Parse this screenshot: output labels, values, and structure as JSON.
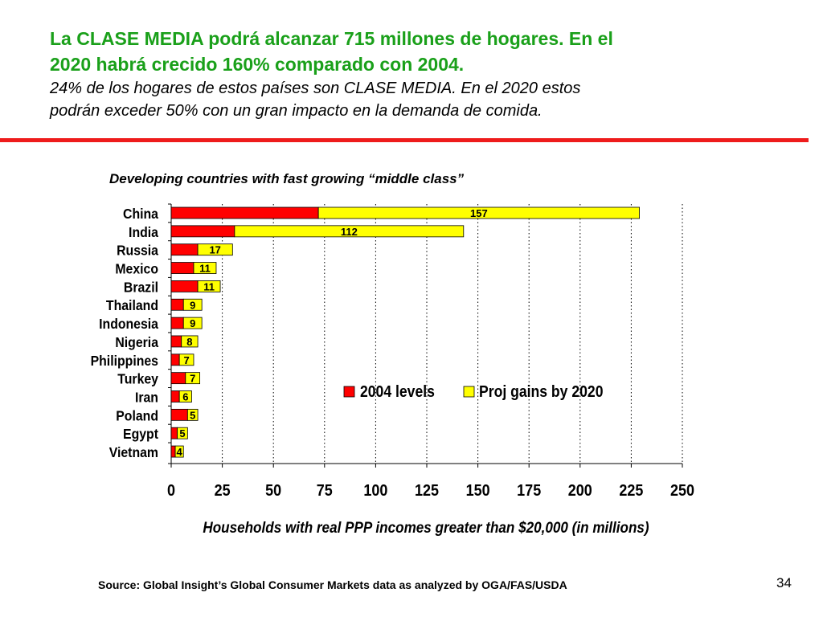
{
  "slide": {
    "headline_line1": "La CLASE MEDIA podrá alcanzar 715 millones de hogares. En el",
    "headline_line2": "2020 habrá crecido 160% comparado con  2004.",
    "subhead_line1": "24% de los hogares de estos países son CLASE MEDIA. En el 2020 estos",
    "subhead_line2": "podrán exceder 50% con un gran impacto en la demanda de comida.",
    "source": "Source:  Global Insight’s Global Consumer Markets data as analyzed by OGA/FAS/USDA",
    "page_number": "34",
    "accent_color": "#ee1c1c",
    "headline_color": "#1aa01a"
  },
  "chart_data": {
    "type": "bar",
    "orientation": "horizontal",
    "stacked": true,
    "title": "Developing countries with fast growing “middle class”",
    "xlabel": "Households with real PPP incomes greater than $20,000 (in millions)",
    "ylabel": "",
    "xlim": [
      0,
      250
    ],
    "xticks": [
      "0",
      "25",
      "50",
      "75",
      "100",
      "125",
      "150",
      "175",
      "200",
      "225",
      "250"
    ],
    "grid": "vertical dotted",
    "legend_position": "center-right",
    "categories": [
      "China",
      "India",
      "Russia",
      "Mexico",
      "Brazil",
      "Thailand",
      "Indonesia",
      "Nigeria",
      "Philippines",
      "Turkey",
      "Iran",
      "Poland",
      "Egypt",
      "Vietnam"
    ],
    "series": [
      {
        "name": "2004 levels",
        "color": "#ff0000",
        "values": [
          72,
          31,
          13,
          11,
          13,
          6,
          6,
          5,
          4,
          7,
          4,
          8,
          3,
          2
        ]
      },
      {
        "name": "Proj gains by 2020",
        "color": "#ffff00",
        "values": [
          157,
          112,
          17,
          11,
          11,
          9,
          9,
          8,
          7,
          7,
          6,
          5,
          5,
          4
        ]
      }
    ],
    "data_labels": [
      "157",
      "112",
      "17",
      "11",
      "11",
      "9",
      "9",
      "8",
      "7",
      "7",
      "6",
      "5",
      "5",
      "4"
    ]
  }
}
